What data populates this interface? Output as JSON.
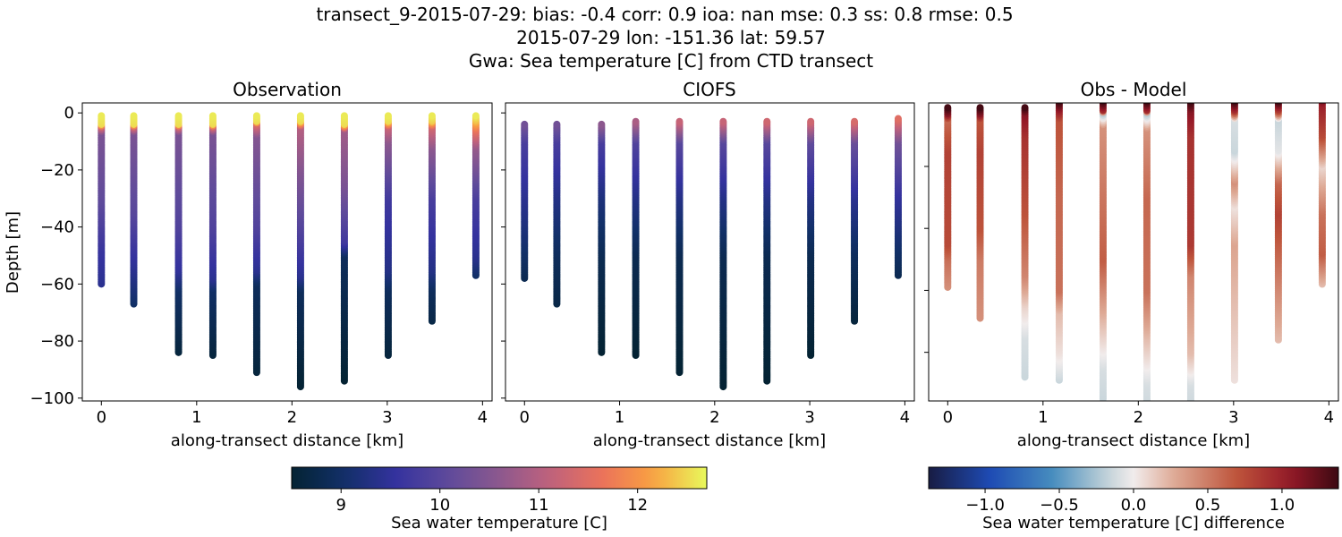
{
  "title_lines": [
    "transect_9-2015-07-29: bias: -0.4  corr: 0.9  ioa: nan  mse: 0.3  ss: 0.8  rmse: 0.5",
    "2015-07-29 lon: -151.36 lat: 59.57",
    "Gwa: Sea temperature [C] from CTD transect"
  ],
  "chart_data": [
    {
      "type": "scatter",
      "title": "Observation",
      "xlabel": "along-transect distance [km]",
      "ylabel": "Depth [m]",
      "xlim": [
        -0.2,
        4.1
      ],
      "ylim": [
        -101,
        3.5
      ],
      "xticks": [
        0,
        1,
        2,
        3,
        4
      ],
      "yticks": [
        0,
        -20,
        -40,
        -60,
        -80,
        -100
      ],
      "show_yticklabels": true,
      "colormap": "thermal",
      "clim": [
        8.5,
        12.7
      ],
      "stations": [
        {
          "x": 0,
          "top": -1,
          "bottom": -60,
          "profile": [
            [
              -1,
              12.6
            ],
            [
              -4,
              12.5
            ],
            [
              -5,
              11.3
            ],
            [
              -7,
              10.4
            ],
            [
              -30,
              10.1
            ],
            [
              -48,
              9.6
            ],
            [
              -60,
              9.4
            ]
          ]
        },
        {
          "x": 0.34,
          "top": -1,
          "bottom": -67,
          "profile": [
            [
              -1,
              12.6
            ],
            [
              -4,
              12.5
            ],
            [
              -5,
              11.3
            ],
            [
              -7,
              10.4
            ],
            [
              -35,
              10.0
            ],
            [
              -55,
              9.4
            ],
            [
              -67,
              9.0
            ]
          ]
        },
        {
          "x": 0.81,
          "top": -1,
          "bottom": -84,
          "profile": [
            [
              -1,
              12.6
            ],
            [
              -4,
              12.5
            ],
            [
              -5,
              11.3
            ],
            [
              -7,
              10.4
            ],
            [
              -40,
              9.9
            ],
            [
              -55,
              9.5
            ],
            [
              -62,
              9.0
            ],
            [
              -84,
              8.6
            ]
          ]
        },
        {
          "x": 1.17,
          "top": -1,
          "bottom": -85,
          "profile": [
            [
              -1,
              12.6
            ],
            [
              -4,
              12.5
            ],
            [
              -5,
              11.3
            ],
            [
              -7,
              10.4
            ],
            [
              -40,
              9.9
            ],
            [
              -58,
              9.4
            ],
            [
              -62,
              9.0
            ],
            [
              -85,
              8.6
            ]
          ]
        },
        {
          "x": 1.63,
          "top": -1,
          "bottom": -91,
          "profile": [
            [
              -1,
              12.6
            ],
            [
              -3,
              12.5
            ],
            [
              -4,
              11.4
            ],
            [
              -8,
              10.5
            ],
            [
              -40,
              9.9
            ],
            [
              -55,
              9.4
            ],
            [
              -60,
              8.9
            ],
            [
              -91,
              8.6
            ]
          ]
        },
        {
          "x": 2.09,
          "top": -1,
          "bottom": -96,
          "profile": [
            [
              -1,
              12.6
            ],
            [
              -3,
              12.5
            ],
            [
              -5,
              11.0
            ],
            [
              -20,
              10.5
            ],
            [
              -45,
              9.8
            ],
            [
              -57,
              9.4
            ],
            [
              -62,
              8.9
            ],
            [
              -96,
              8.5
            ]
          ]
        },
        {
          "x": 2.55,
          "top": -1,
          "bottom": -94,
          "profile": [
            [
              -1,
              12.6
            ],
            [
              -4,
              12.5
            ],
            [
              -6,
              10.8
            ],
            [
              -25,
              10.4
            ],
            [
              -45,
              9.7
            ],
            [
              -50,
              8.9
            ],
            [
              -94,
              8.5
            ]
          ]
        },
        {
          "x": 3.01,
          "top": -1,
          "bottom": -85,
          "profile": [
            [
              -1,
              12.6
            ],
            [
              -3,
              12.5
            ],
            [
              -5,
              11.2
            ],
            [
              -10,
              10.6
            ],
            [
              -30,
              9.7
            ],
            [
              -55,
              9.3
            ],
            [
              -62,
              8.9
            ],
            [
              -85,
              8.6
            ]
          ]
        },
        {
          "x": 3.47,
          "top": -1,
          "bottom": -73,
          "profile": [
            [
              -1,
              12.6
            ],
            [
              -3,
              12.4
            ],
            [
              -5,
              11.3
            ],
            [
              -12,
              10.6
            ],
            [
              -30,
              9.8
            ],
            [
              -55,
              9.3
            ],
            [
              -62,
              8.9
            ],
            [
              -73,
              8.7
            ]
          ]
        },
        {
          "x": 3.93,
          "top": -1,
          "bottom": -57,
          "profile": [
            [
              -1,
              12.6
            ],
            [
              -3,
              12.3
            ],
            [
              -6,
              11.6
            ],
            [
              -12,
              10.7
            ],
            [
              -30,
              9.8
            ],
            [
              -50,
              9.4
            ],
            [
              -57,
              9.0
            ]
          ]
        }
      ]
    },
    {
      "type": "scatter",
      "title": "CIOFS",
      "xlabel": "along-transect distance [km]",
      "xlim": [
        -0.2,
        4.1
      ],
      "ylim": [
        -101,
        3.5
      ],
      "xticks": [
        0,
        1,
        2,
        3,
        4
      ],
      "yticks": [
        0,
        -20,
        -40,
        -60,
        -80,
        -100
      ],
      "show_yticklabels": false,
      "colormap": "thermal",
      "clim": [
        8.5,
        12.7
      ],
      "stations": [
        {
          "x": 0,
          "top": -4,
          "bottom": -58,
          "profile": [
            [
              -4,
              10.3
            ],
            [
              -10,
              9.8
            ],
            [
              -30,
              9.4
            ],
            [
              -45,
              9.1
            ],
            [
              -58,
              8.8
            ]
          ]
        },
        {
          "x": 0.34,
          "top": -4,
          "bottom": -67,
          "profile": [
            [
              -4,
              10.3
            ],
            [
              -10,
              9.8
            ],
            [
              -30,
              9.3
            ],
            [
              -50,
              8.9
            ],
            [
              -67,
              8.7
            ]
          ]
        },
        {
          "x": 0.81,
          "top": -4,
          "bottom": -84,
          "profile": [
            [
              -4,
              10.6
            ],
            [
              -10,
              9.8
            ],
            [
              -30,
              9.2
            ],
            [
              -50,
              8.8
            ],
            [
              -84,
              8.5
            ]
          ]
        },
        {
          "x": 1.17,
          "top": -3,
          "bottom": -85,
          "profile": [
            [
              -3,
              10.9
            ],
            [
              -10,
              9.9
            ],
            [
              -30,
              9.3
            ],
            [
              -50,
              8.8
            ],
            [
              -85,
              8.5
            ]
          ]
        },
        {
          "x": 1.63,
          "top": -3,
          "bottom": -91,
          "profile": [
            [
              -3,
              11.2
            ],
            [
              -10,
              10.0
            ],
            [
              -30,
              9.3
            ],
            [
              -50,
              8.8
            ],
            [
              -91,
              8.5
            ]
          ]
        },
        {
          "x": 2.09,
          "top": -3,
          "bottom": -96,
          "profile": [
            [
              -3,
              11.2
            ],
            [
              -10,
              10.0
            ],
            [
              -30,
              9.3
            ],
            [
              -50,
              8.8
            ],
            [
              -96,
              8.5
            ]
          ]
        },
        {
          "x": 2.55,
          "top": -3,
          "bottom": -94,
          "profile": [
            [
              -3,
              11.3
            ],
            [
              -10,
              10.0
            ],
            [
              -30,
              9.3
            ],
            [
              -50,
              8.8
            ],
            [
              -94,
              8.5
            ]
          ]
        },
        {
          "x": 3.01,
          "top": -3,
          "bottom": -85,
          "profile": [
            [
              -3,
              11.3
            ],
            [
              -10,
              10.1
            ],
            [
              -30,
              9.3
            ],
            [
              -50,
              8.8
            ],
            [
              -85,
              8.5
            ]
          ]
        },
        {
          "x": 3.47,
          "top": -3,
          "bottom": -73,
          "profile": [
            [
              -3,
              11.4
            ],
            [
              -10,
              10.2
            ],
            [
              -30,
              9.4
            ],
            [
              -50,
              8.9
            ],
            [
              -73,
              8.6
            ]
          ]
        },
        {
          "x": 3.93,
          "top": -2,
          "bottom": -57,
          "profile": [
            [
              -2,
              11.5
            ],
            [
              -10,
              10.3
            ],
            [
              -30,
              9.5
            ],
            [
              -45,
              9.1
            ],
            [
              -57,
              8.8
            ]
          ]
        }
      ]
    },
    {
      "type": "scatter",
      "title": "Obs - Model",
      "xlabel": "along-transect distance [km]",
      "xlim": [
        -0.2,
        4.1
      ],
      "ylim": [
        -95.7,
        0.5
      ],
      "xticks": [
        0,
        1,
        2,
        3,
        4
      ],
      "yticks": [
        -20,
        -40,
        -60,
        -80
      ],
      "show_yticklabels": false,
      "colormap": "balance",
      "clim": [
        -1.38,
        1.38
      ],
      "stations": [
        {
          "x": 0,
          "top": -1,
          "bottom": -59,
          "profile": [
            [
              -1,
              1.35
            ],
            [
              -3,
              1.1
            ],
            [
              -5,
              0.6
            ],
            [
              -15,
              0.8
            ],
            [
              -45,
              0.75
            ],
            [
              -50,
              0.55
            ],
            [
              -59,
              0.4
            ]
          ]
        },
        {
          "x": 0.34,
          "top": -1,
          "bottom": -69,
          "profile": [
            [
              -1,
              1.35
            ],
            [
              -3,
              1.1
            ],
            [
              -5,
              0.7
            ],
            [
              -15,
              0.8
            ],
            [
              -40,
              0.7
            ],
            [
              -50,
              0.5
            ],
            [
              -69,
              0.4
            ]
          ]
        },
        {
          "x": 0.81,
          "top": -1,
          "bottom": -88,
          "profile": [
            [
              -1,
              1.35
            ],
            [
              -3,
              1.1
            ],
            [
              -10,
              0.9
            ],
            [
              -35,
              0.7
            ],
            [
              -55,
              0.45
            ],
            [
              -65,
              0.1
            ],
            [
              -75,
              -0.1
            ],
            [
              -88,
              -0.15
            ]
          ]
        },
        {
          "x": 1.17,
          "top": 1,
          "bottom": -89,
          "profile": [
            [
              1,
              1.35
            ],
            [
              -2,
              1.0
            ],
            [
              -5,
              0.7
            ],
            [
              -30,
              0.6
            ],
            [
              -60,
              0.55
            ],
            [
              -67,
              0.2
            ],
            [
              -80,
              0.05
            ],
            [
              -89,
              -0.15
            ]
          ]
        },
        {
          "x": 1.63,
          "top": 1,
          "bottom": -95,
          "profile": [
            [
              1,
              1.35
            ],
            [
              -2,
              0.9
            ],
            [
              -3,
              -0.2
            ],
            [
              -7,
              0.4
            ],
            [
              -50,
              0.65
            ],
            [
              -70,
              0.2
            ],
            [
              -85,
              -0.1
            ],
            [
              -95,
              -0.15
            ]
          ]
        },
        {
          "x": 2.09,
          "top": 1,
          "bottom": -100,
          "profile": [
            [
              1,
              1.35
            ],
            [
              -2,
              0.9
            ],
            [
              -3,
              -0.2
            ],
            [
              -8,
              0.4
            ],
            [
              -30,
              0.6
            ],
            [
              -60,
              0.55
            ],
            [
              -75,
              0.2
            ],
            [
              -90,
              -0.1
            ],
            [
              -100,
              -0.15
            ]
          ]
        },
        {
          "x": 2.55,
          "top": 1,
          "bottom": -99,
          "profile": [
            [
              1,
              1.35
            ],
            [
              -2,
              1.1
            ],
            [
              -10,
              0.9
            ],
            [
              -45,
              0.85
            ],
            [
              -55,
              0.45
            ],
            [
              -80,
              0.2
            ],
            [
              -90,
              -0.1
            ],
            [
              -99,
              -0.15
            ]
          ]
        },
        {
          "x": 3.01,
          "top": 1,
          "bottom": -89,
          "profile": [
            [
              1,
              1.35
            ],
            [
              -2,
              0.9
            ],
            [
              -5,
              -0.1
            ],
            [
              -15,
              -0.15
            ],
            [
              -25,
              0.4
            ],
            [
              -33,
              0.05
            ],
            [
              -45,
              0.3
            ],
            [
              -89,
              0.05
            ]
          ]
        },
        {
          "x": 3.47,
          "top": 1,
          "bottom": -76,
          "profile": [
            [
              1,
              1.35
            ],
            [
              -2,
              0.8
            ],
            [
              -5,
              -0.15
            ],
            [
              -15,
              -0.05
            ],
            [
              -25,
              0.6
            ],
            [
              -35,
              0.8
            ],
            [
              -55,
              0.5
            ],
            [
              -76,
              0.2
            ]
          ]
        },
        {
          "x": 3.93,
          "top": 3,
          "bottom": -58,
          "profile": [
            [
              3,
              1.35
            ],
            [
              0,
              1.0
            ],
            [
              -10,
              0.75
            ],
            [
              -20,
              0.1
            ],
            [
              -35,
              0.55
            ],
            [
              -48,
              0.65
            ],
            [
              -58,
              0.2
            ]
          ]
        }
      ]
    }
  ],
  "colorbars": [
    {
      "label": "Sea water temperature [C]",
      "colormap": "thermal",
      "range": [
        8.5,
        12.7
      ],
      "ticks": [
        "9",
        "10",
        "11",
        "12"
      ],
      "tick_values": [
        9,
        10,
        11,
        12
      ]
    },
    {
      "label": "Sea water temperature [C] difference",
      "colormap": "balance",
      "range": [
        -1.38,
        1.38
      ],
      "ticks": [
        "−1.0",
        "−0.5",
        "0.0",
        "0.5",
        "1.0"
      ],
      "tick_values": [
        -1,
        -0.5,
        0,
        0.5,
        1
      ]
    }
  ]
}
